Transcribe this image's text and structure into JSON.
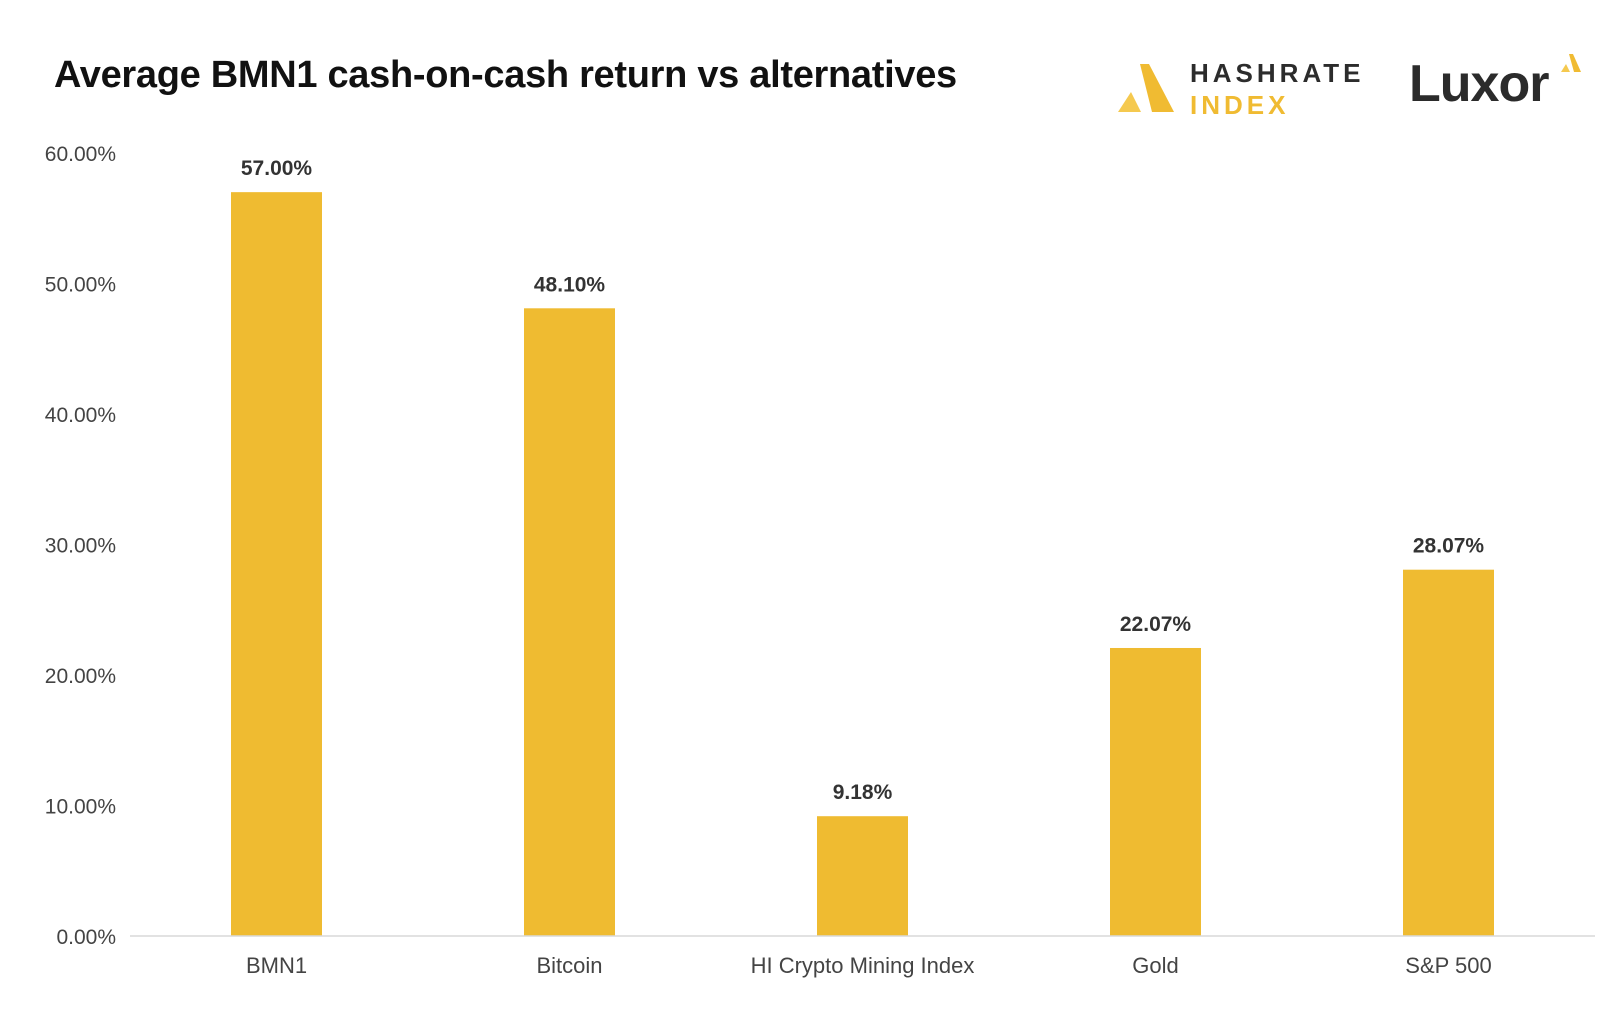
{
  "chart_data": {
    "type": "bar",
    "title": "Average BMN1 cash-on-cash return vs alternatives",
    "categories": [
      "BMN1",
      "Bitcoin",
      "HI Crypto Mining Index",
      "Gold",
      "S&P 500"
    ],
    "values": [
      57.0,
      48.1,
      9.18,
      22.07,
      28.07
    ],
    "data_labels": [
      "57.00%",
      "48.10%",
      "9.18%",
      "22.07%",
      "28.07%"
    ],
    "y_ticks": [
      "0.00%",
      "10.00%",
      "20.00%",
      "30.00%",
      "40.00%",
      "50.00%",
      "60.00%"
    ],
    "ylim": [
      0,
      60
    ],
    "xlabel": "",
    "ylabel": "",
    "grid": false,
    "legend": "none",
    "bar_color": "#efbb31"
  },
  "logos": {
    "hashrate": {
      "line1": "HASHRATE",
      "line2": "INDEX",
      "color": "#f0bb32"
    },
    "luxor": {
      "word": "Luxor",
      "color": "#2b2b2b"
    }
  }
}
